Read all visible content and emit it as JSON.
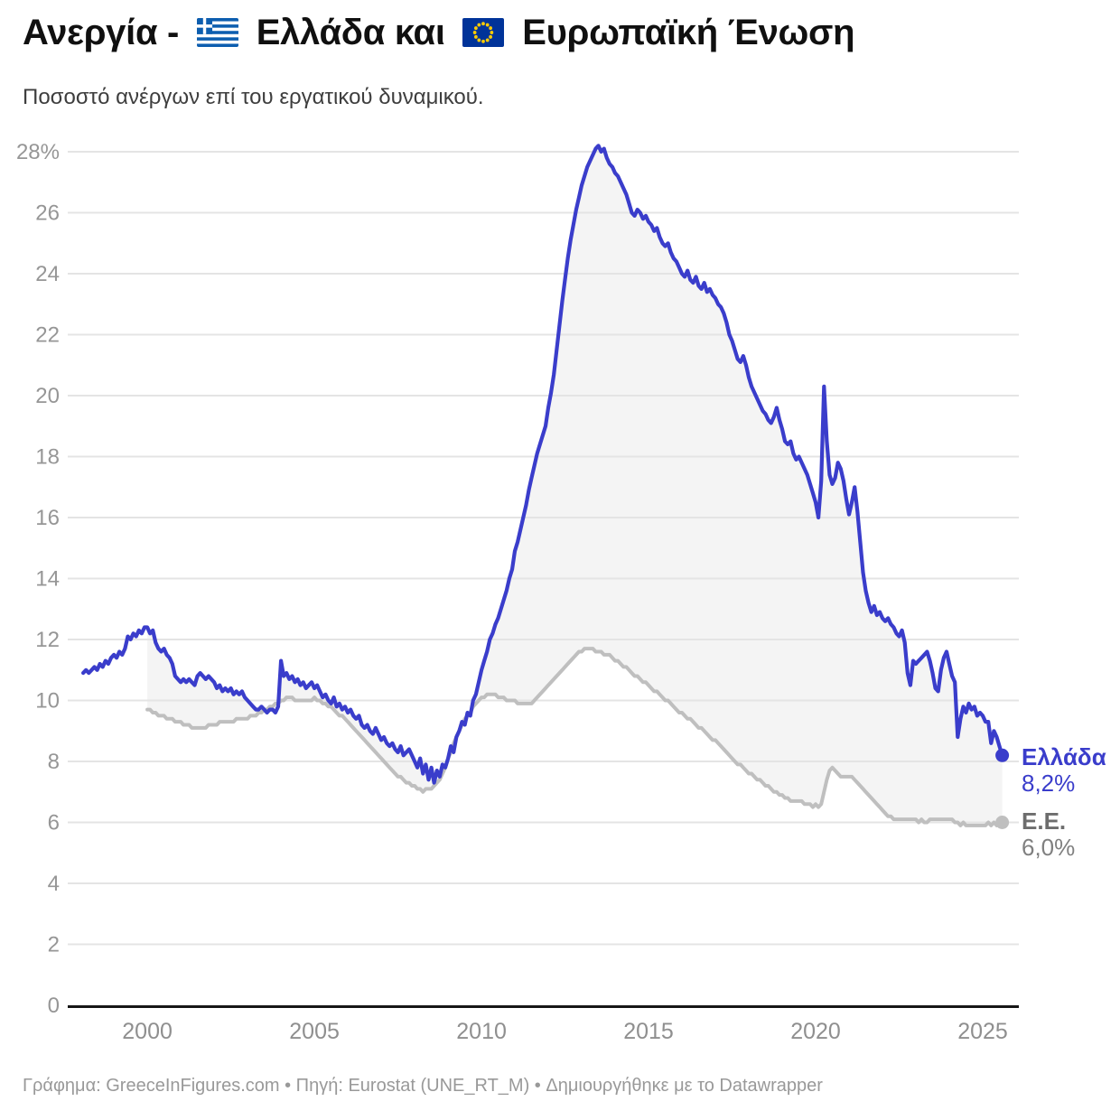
{
  "header": {
    "title_parts": [
      "Ανεργία -",
      "Ελλάδα και",
      "Ευρωπαϊκή Ένωση"
    ],
    "flag_icons": [
      "greece-flag",
      "eu-flag"
    ],
    "subtitle": "Ποσοστό ανέργων επί του εργατικού δυναμικού."
  },
  "footer": {
    "text": "Γράφημα: GreeceInFigures.com • Πηγή: Eurostat (UNE_RT_M) • Δημιουργήθηκε με το Datawrapper"
  },
  "colors": {
    "greece_line": "#3a3dcb",
    "eu_line": "#bfbfbf",
    "fill_between": "#f4f4f4",
    "gridline": "#e4e4e4",
    "axis_line": "#161616",
    "tick_label": "#969696",
    "eu_label": "#6d6d6d",
    "eu_value": "#808080"
  },
  "chart_data": {
    "type": "line",
    "title": "Ανεργία - Ελλάδα και Ευρωπαϊκή Ένωση",
    "subtitle": "Ποσοστό ανέργων επί του εργατικού δυναμικού.",
    "unit": "%",
    "grid": "horizontal",
    "legend_position": "right-edge-labels",
    "x_range": [
      1997.62,
      2026.08
    ],
    "y_range": [
      0,
      28
    ],
    "x_ticks": [
      2000,
      2005,
      2010,
      2015,
      2020,
      2025
    ],
    "y_tick_values": [
      0,
      2,
      4,
      6,
      8,
      10,
      12,
      14,
      16,
      18,
      20,
      22,
      24,
      26,
      28
    ],
    "y_tick_labels": [
      "0",
      "2",
      "4",
      "6",
      "8",
      "10",
      "12",
      "14",
      "16",
      "18",
      "20",
      "22",
      "24",
      "26",
      "28%"
    ],
    "area_fill_between_series": true,
    "series": [
      {
        "key": "greece",
        "name": "Ελλάδα",
        "end_label": "Ελλάδα",
        "end_value": "8,2%",
        "start": 1998.0833,
        "points_per_year": 12,
        "values": [
          10.9,
          11.0,
          10.9,
          11.0,
          11.1,
          11.0,
          11.2,
          11.1,
          11.3,
          11.2,
          11.4,
          11.5,
          11.4,
          11.6,
          11.5,
          11.7,
          12.1,
          12.0,
          12.2,
          12.1,
          12.3,
          12.2,
          12.4,
          12.4,
          12.2,
          12.3,
          11.9,
          11.7,
          11.6,
          11.7,
          11.5,
          11.4,
          11.2,
          10.8,
          10.7,
          10.6,
          10.7,
          10.6,
          10.7,
          10.6,
          10.5,
          10.8,
          10.9,
          10.8,
          10.7,
          10.8,
          10.7,
          10.6,
          10.4,
          10.5,
          10.3,
          10.4,
          10.3,
          10.4,
          10.2,
          10.3,
          10.2,
          10.3,
          10.1,
          10.0,
          9.9,
          9.8,
          9.7,
          9.7,
          9.8,
          9.7,
          9.6,
          9.7,
          9.7,
          9.6,
          9.8,
          11.3,
          10.8,
          10.9,
          10.7,
          10.8,
          10.6,
          10.7,
          10.5,
          10.6,
          10.4,
          10.5,
          10.6,
          10.4,
          10.5,
          10.3,
          10.1,
          10.2,
          10.0,
          9.9,
          10.1,
          9.8,
          9.9,
          9.7,
          9.8,
          9.6,
          9.7,
          9.5,
          9.4,
          9.5,
          9.2,
          9.1,
          9.2,
          9.0,
          8.9,
          9.1,
          8.9,
          8.7,
          8.8,
          8.6,
          8.5,
          8.6,
          8.4,
          8.3,
          8.5,
          8.2,
          8.3,
          8.4,
          8.2,
          8.0,
          7.8,
          8.1,
          7.6,
          7.9,
          7.4,
          7.8,
          7.3,
          7.7,
          7.5,
          7.9,
          7.8,
          8.1,
          8.5,
          8.3,
          8.8,
          9.0,
          9.3,
          9.2,
          9.6,
          9.5,
          10.0,
          10.2,
          10.6,
          11.0,
          11.3,
          11.6,
          12.0,
          12.2,
          12.5,
          12.7,
          13.0,
          13.3,
          13.6,
          14.0,
          14.3,
          14.9,
          15.2,
          15.6,
          16.0,
          16.4,
          16.9,
          17.3,
          17.7,
          18.1,
          18.4,
          18.7,
          19.0,
          19.6,
          20.1,
          20.7,
          21.5,
          22.3,
          23.1,
          23.8,
          24.5,
          25.1,
          25.6,
          26.1,
          26.5,
          26.9,
          27.2,
          27.5,
          27.7,
          27.9,
          28.1,
          28.2,
          28.0,
          28.1,
          27.8,
          27.6,
          27.5,
          27.3,
          27.2,
          27.0,
          26.8,
          26.6,
          26.3,
          26.0,
          25.9,
          26.1,
          26.0,
          25.8,
          25.9,
          25.7,
          25.6,
          25.4,
          25.5,
          25.2,
          25.0,
          24.9,
          25.0,
          24.7,
          24.5,
          24.4,
          24.2,
          24.0,
          23.9,
          24.1,
          23.8,
          23.7,
          23.9,
          23.6,
          23.5,
          23.7,
          23.4,
          23.5,
          23.3,
          23.2,
          23.0,
          22.9,
          22.7,
          22.4,
          22.0,
          21.8,
          21.5,
          21.2,
          21.1,
          21.3,
          21.0,
          20.6,
          20.3,
          20.1,
          19.9,
          19.7,
          19.5,
          19.4,
          19.2,
          19.1,
          19.3,
          19.6,
          19.2,
          18.9,
          18.5,
          18.4,
          18.5,
          18.1,
          17.9,
          18.0,
          17.8,
          17.6,
          17.4,
          17.1,
          16.8,
          16.5,
          16.0,
          17.2,
          20.3,
          18.5,
          17.4,
          17.1,
          17.3,
          17.8,
          17.6,
          17.2,
          16.6,
          16.1,
          16.5,
          17.0,
          16.2,
          15.2,
          14.2,
          13.6,
          13.2,
          12.9,
          13.1,
          12.8,
          12.9,
          12.7,
          12.6,
          12.7,
          12.5,
          12.4,
          12.2,
          12.1,
          12.3,
          11.9,
          10.9,
          10.5,
          11.3,
          11.2,
          11.3,
          11.4,
          11.5,
          11.6,
          11.3,
          10.9,
          10.4,
          10.3,
          11.0,
          11.4,
          11.6,
          11.2,
          10.8,
          10.6,
          8.8,
          9.4,
          9.8,
          9.6,
          9.9,
          9.7,
          9.8,
          9.5,
          9.6,
          9.5,
          9.3,
          9.3,
          8.6,
          9.0,
          8.8,
          8.5,
          8.2
        ]
      },
      {
        "key": "eu",
        "name": "Ε.Ε.",
        "end_label": "Ε.Ε.",
        "end_value": "6,0%",
        "start": 2000.0,
        "points_per_year": 12,
        "values": [
          9.7,
          9.7,
          9.6,
          9.6,
          9.5,
          9.5,
          9.5,
          9.4,
          9.4,
          9.4,
          9.3,
          9.3,
          9.3,
          9.2,
          9.2,
          9.2,
          9.1,
          9.1,
          9.1,
          9.1,
          9.1,
          9.1,
          9.2,
          9.2,
          9.2,
          9.2,
          9.3,
          9.3,
          9.3,
          9.3,
          9.3,
          9.3,
          9.4,
          9.4,
          9.4,
          9.4,
          9.4,
          9.5,
          9.5,
          9.5,
          9.6,
          9.6,
          9.7,
          9.7,
          9.8,
          9.8,
          9.9,
          9.9,
          10.0,
          10.0,
          10.1,
          10.1,
          10.1,
          10.0,
          10.0,
          10.0,
          10.0,
          10.0,
          10.0,
          10.0,
          10.1,
          10.0,
          10.0,
          9.9,
          9.9,
          9.8,
          9.8,
          9.7,
          9.6,
          9.5,
          9.5,
          9.4,
          9.3,
          9.2,
          9.1,
          9.0,
          8.9,
          8.8,
          8.7,
          8.6,
          8.5,
          8.4,
          8.3,
          8.2,
          8.1,
          8.0,
          7.9,
          7.8,
          7.7,
          7.6,
          7.5,
          7.5,
          7.4,
          7.3,
          7.3,
          7.2,
          7.2,
          7.1,
          7.1,
          7.0,
          7.1,
          7.1,
          7.1,
          7.2,
          7.3,
          7.4,
          7.6,
          7.8,
          8.1,
          8.3,
          8.6,
          8.8,
          9.0,
          9.2,
          9.4,
          9.5,
          9.6,
          9.8,
          9.9,
          10.0,
          10.1,
          10.1,
          10.2,
          10.2,
          10.2,
          10.2,
          10.1,
          10.1,
          10.1,
          10.0,
          10.0,
          10.0,
          10.0,
          9.9,
          9.9,
          9.9,
          9.9,
          9.9,
          9.9,
          10.0,
          10.1,
          10.2,
          10.3,
          10.4,
          10.5,
          10.6,
          10.7,
          10.8,
          10.9,
          11.0,
          11.1,
          11.2,
          11.3,
          11.4,
          11.5,
          11.6,
          11.6,
          11.7,
          11.7,
          11.7,
          11.7,
          11.6,
          11.6,
          11.6,
          11.5,
          11.5,
          11.5,
          11.4,
          11.3,
          11.3,
          11.2,
          11.1,
          11.1,
          11.0,
          10.9,
          10.8,
          10.8,
          10.7,
          10.6,
          10.6,
          10.5,
          10.4,
          10.3,
          10.3,
          10.2,
          10.1,
          10.0,
          10.0,
          9.9,
          9.8,
          9.7,
          9.6,
          9.6,
          9.5,
          9.4,
          9.4,
          9.3,
          9.2,
          9.1,
          9.1,
          9.0,
          8.9,
          8.8,
          8.7,
          8.7,
          8.6,
          8.5,
          8.4,
          8.3,
          8.2,
          8.1,
          8.0,
          7.9,
          7.9,
          7.8,
          7.7,
          7.6,
          7.6,
          7.5,
          7.4,
          7.4,
          7.3,
          7.2,
          7.2,
          7.1,
          7.0,
          7.0,
          6.9,
          6.9,
          6.8,
          6.8,
          6.7,
          6.7,
          6.7,
          6.7,
          6.7,
          6.6,
          6.6,
          6.6,
          6.5,
          6.6,
          6.5,
          6.6,
          7.0,
          7.4,
          7.7,
          7.8,
          7.7,
          7.6,
          7.5,
          7.5,
          7.5,
          7.5,
          7.5,
          7.4,
          7.3,
          7.2,
          7.1,
          7.0,
          6.9,
          6.8,
          6.7,
          6.6,
          6.5,
          6.4,
          6.3,
          6.2,
          6.2,
          6.1,
          6.1,
          6.1,
          6.1,
          6.1,
          6.1,
          6.1,
          6.1,
          6.1,
          6.0,
          6.1,
          6.0,
          6.0,
          6.1,
          6.1,
          6.1,
          6.1,
          6.1,
          6.1,
          6.1,
          6.1,
          6.1,
          6.0,
          6.0,
          5.9,
          6.0,
          5.9,
          5.9,
          5.9,
          5.9,
          5.9,
          5.9,
          5.9,
          5.9,
          6.0,
          5.9,
          6.0,
          5.9,
          6.0,
          6.0
        ]
      }
    ]
  }
}
